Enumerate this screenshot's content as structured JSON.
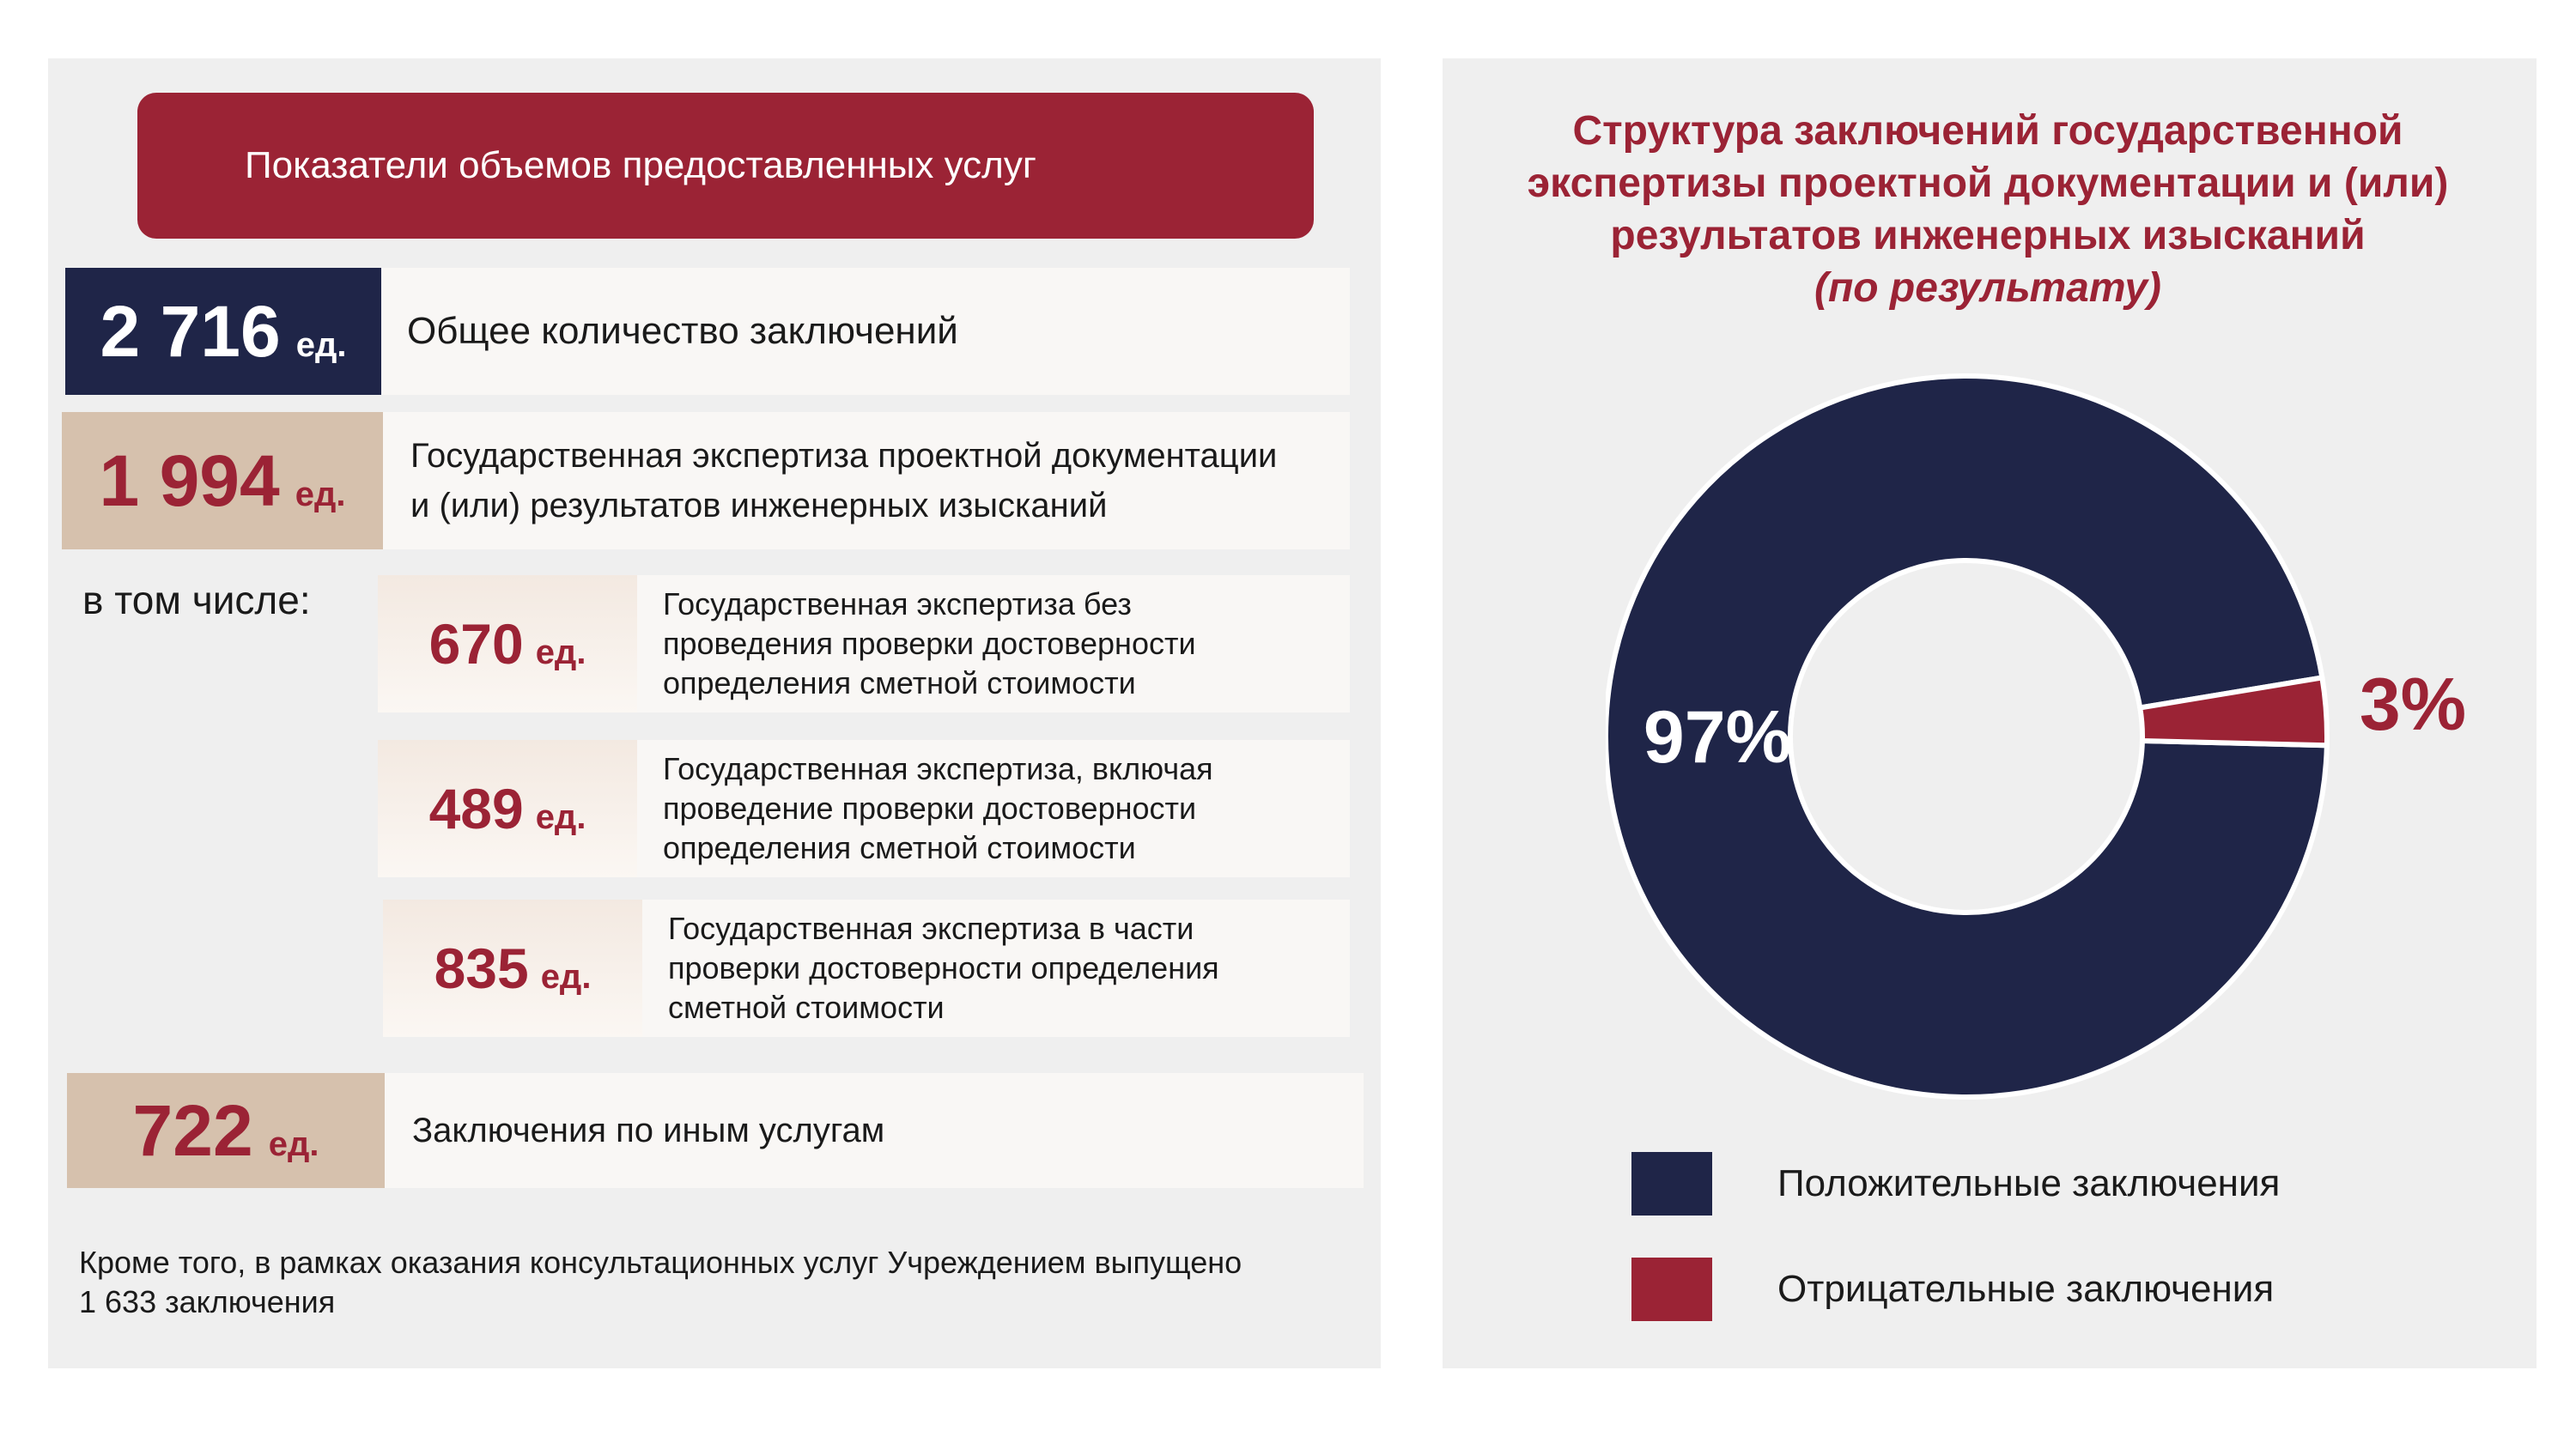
{
  "left": {
    "banner": "Показатели объемов предоставленных услуг",
    "total": {
      "value": "2 716",
      "unit": "ед.",
      "label": "Общее количество заключений"
    },
    "state": {
      "value": "1 994",
      "unit": "ед.",
      "label_line1": "Государственная экспертиза проектной документации",
      "label_line2": "и (или) результатов инженерных изысканий"
    },
    "including_label": "в том числе:",
    "sub_items": [
      {
        "value": "670",
        "unit": "ед.",
        "lines": [
          "Государственная экспертиза без",
          "проведения проверки достоверности",
          "определения сметной стоимости"
        ]
      },
      {
        "value": "489",
        "unit": "ед.",
        "lines": [
          "Государственная экспертиза, включая",
          "проведение проверки достоверности",
          "определения сметной стоимости"
        ]
      },
      {
        "value": "835",
        "unit": "ед.",
        "lines": [
          "Государственная экспертиза в части",
          "проверки достоверности определения",
          "сметной стоимости"
        ]
      }
    ],
    "other": {
      "value": "722",
      "unit": "ед.",
      "label": "Заключения по иным услугам"
    },
    "note_line1": "Кроме того, в рамках оказания консультационных услуг Учреждением выпущено",
    "note_line2": "1 633 заключения"
  },
  "chart_data": {
    "type": "pie",
    "donut": true,
    "title_lines": [
      "Структура заключений государственной",
      "экспертизы проектной документации и (или)",
      "результатов инженерных изысканий"
    ],
    "subtitle": "(по результату)",
    "series": [
      {
        "name": "Положительные заключения",
        "value": 97,
        "label": "97%",
        "color": "#1f2548"
      },
      {
        "name": "Отрицательные заключения",
        "value": 3,
        "label": "3%",
        "color": "#9b2335"
      }
    ]
  },
  "colors": {
    "accent": "#9b2335",
    "navy": "#1f2548",
    "beige": "#d6c1ad",
    "panel": "#efefef"
  }
}
